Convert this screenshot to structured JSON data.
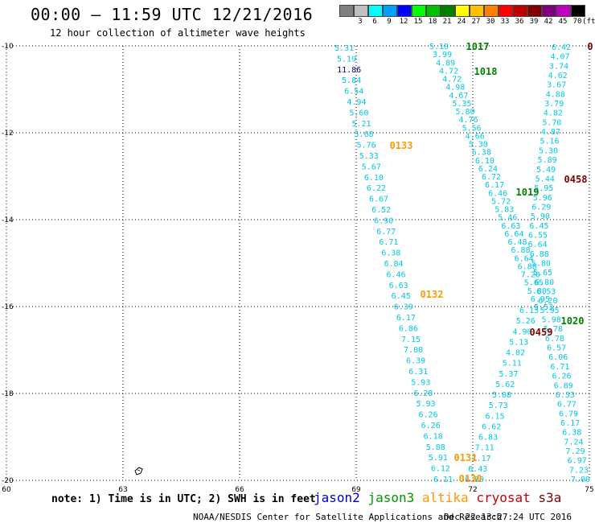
{
  "header": {
    "title": "00:00 – 11:59 UTC 12/21/2016",
    "subtitle": "12 hour collection of altimeter wave heights"
  },
  "legend": {
    "unit": "(ft)",
    "bins": [
      {
        "label": "",
        "color": "#808080"
      },
      {
        "label": "3",
        "color": "#c0c0c0"
      },
      {
        "label": "6",
        "color": "#00ffff"
      },
      {
        "label": "9",
        "color": "#00a0ff"
      },
      {
        "label": "12",
        "color": "#0000ff"
      },
      {
        "label": "15",
        "color": "#00ff00"
      },
      {
        "label": "18",
        "color": "#00c000"
      },
      {
        "label": "21",
        "color": "#008000"
      },
      {
        "label": "24",
        "color": "#ffff00"
      },
      {
        "label": "27",
        "color": "#ffc000"
      },
      {
        "label": "30",
        "color": "#ff8000"
      },
      {
        "label": "33",
        "color": "#ff0000"
      },
      {
        "label": "36",
        "color": "#c00000"
      },
      {
        "label": "39",
        "color": "#800000"
      },
      {
        "label": "42",
        "color": "#800080"
      },
      {
        "label": "45",
        "color": "#c000c0"
      },
      {
        "label": "70",
        "color": "#000000"
      }
    ]
  },
  "map": {
    "lon_ticks": [
      "60",
      "63",
      "66",
      "69",
      "72",
      "75"
    ],
    "lat_ticks": [
      "-10",
      "-12",
      "-14",
      "-16",
      "-18",
      "-20"
    ],
    "colors": {
      "cyan": "#00c8e6",
      "darkblue": "#000080",
      "jason3": "#008000",
      "altika": "#ff9900",
      "cryosat": "#800000"
    },
    "tracks": [
      {
        "values": [
          "5.31",
          "5.19",
          "11.86",
          "5.84",
          "6.54",
          "4.94",
          "5.60",
          "5.21",
          "5.68",
          "5.76",
          "5.33",
          "5.67",
          "6.10",
          "6.22",
          "6.67",
          "6.52",
          "6.90",
          "6.77",
          "6.71",
          "6.38",
          "6.84",
          "6.46",
          "6.63",
          "6.45",
          "6.39",
          "6.17",
          "6.86",
          "7.15",
          "7.00",
          "6.39",
          "6.31",
          "5.93",
          "6.28",
          "5.93",
          "6.26",
          "6.26",
          "6.18",
          "5.88",
          "5.91",
          "6.12",
          "6.11"
        ]
      },
      {
        "values": [
          "5.10",
          "3.99",
          "4.89",
          "4.72",
          "4.72",
          "4.98",
          "4.67",
          "5.35",
          "5.80",
          "4.76",
          "5.56",
          "4.66",
          "5.30",
          "6.38",
          "6.10",
          "6.24",
          "6.72",
          "6.17",
          "6.46",
          "5.72",
          "5.83",
          "5.46",
          "6.63",
          "6.64",
          "6.48",
          "6.88",
          "6.64",
          "6.88",
          "7.20",
          "5.65",
          "5.80",
          "6.95",
          "5.53"
        ]
      },
      {
        "values": [
          "6.42",
          "4.07",
          "3.74",
          "4.62",
          "3.67",
          "4.88",
          "3.79",
          "4.82",
          "5.70",
          "4.87",
          "5.16",
          "5.30",
          "5.89",
          "5.49",
          "5.44",
          "5.95",
          "5.96",
          "6.29",
          "5.90",
          "6.45",
          "6.55",
          "6.64",
          "6.88",
          "5.80",
          "5.65",
          "6.80",
          "6.53",
          "6.20",
          "5.95",
          "5.98",
          "5.78",
          "6.78",
          "6.57",
          "6.06",
          "6.71",
          "6.26",
          "6.89",
          "6.33",
          "6.77",
          "6.79",
          "6.17",
          "6.38",
          "7.24",
          "7.29",
          "6.97",
          "7.23",
          "7.00"
        ]
      },
      {
        "values": [
          "6.13",
          "5.26",
          "4.90",
          "5.13",
          "4.82",
          "5.11",
          "5.37",
          "5.62",
          "5.08",
          "5.73",
          "6.15",
          "6.62",
          "6.83",
          "7.11",
          "7.17",
          "6.43",
          "6.89"
        ]
      }
    ],
    "labels": [
      {
        "text": "1017",
        "sat": "jason3"
      },
      {
        "text": "1018",
        "sat": "jason3"
      },
      {
        "text": "0133",
        "sat": "altika"
      },
      {
        "text": "0458",
        "sat": "cryosat"
      },
      {
        "text": "1019",
        "sat": "jason3"
      },
      {
        "text": "0132",
        "sat": "altika"
      },
      {
        "text": "1020",
        "sat": "jason3"
      },
      {
        "text": "0459",
        "sat": "cryosat"
      },
      {
        "text": "0131",
        "sat": "altika"
      },
      {
        "text": "0130",
        "sat": "altika"
      },
      {
        "text": "0",
        "sat": "cryosat"
      }
    ]
  },
  "footer": {
    "note": "note: 1) Time is in UTC; 2) SWH is in feet",
    "satellites": [
      {
        "name": "jason2",
        "color": "#0000cc"
      },
      {
        "name": "jason3",
        "color": "#009900"
      },
      {
        "name": "altika",
        "color": "#ff9900"
      },
      {
        "name": "cryosat",
        "color": "#cc0000"
      },
      {
        "name": "s3a",
        "color": "#800000"
      }
    ],
    "credit": "NOAA/NESDIS Center for Satellite Applications and Research",
    "timestamp": "Dec 22 13:27:24 UTC 2016"
  }
}
